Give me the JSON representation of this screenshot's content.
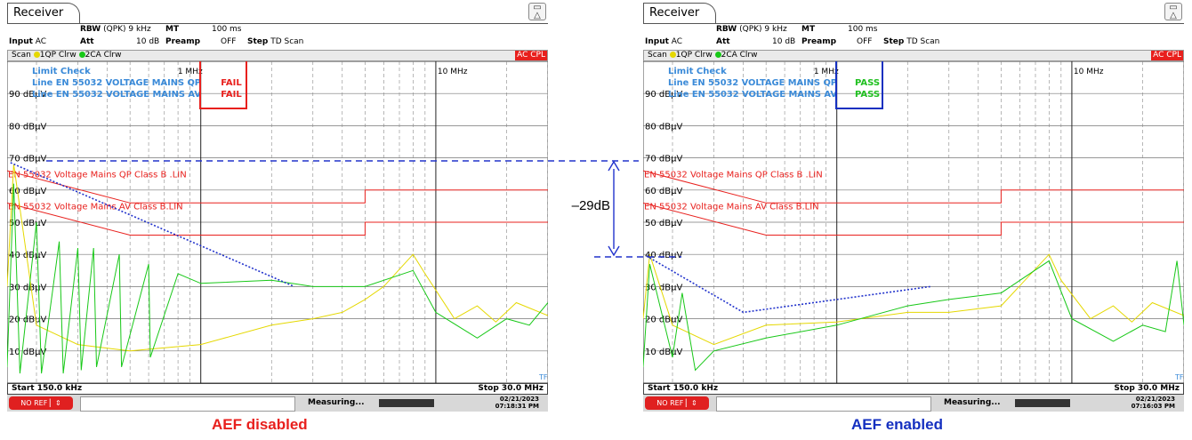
{
  "colors": {
    "qp_trace": "#e5d800",
    "av_trace": "#18c818",
    "limit_line": "#e8201d",
    "label_blue": "#3a8ad8",
    "fail": "#e8201d",
    "pass": "#20c020",
    "envelope": "#2233cc"
  },
  "panels": [
    {
      "tab": "Receiver",
      "rbw_label": "RBW",
      "rbw_value": "(QPK) 9 kHz",
      "mt_label": "MT",
      "mt_value": "100 ms",
      "input_label": "Input",
      "input_value": "AC",
      "att_label": "Att",
      "att_value": "10 dB",
      "preamp_label": "Preamp",
      "preamp_value": "OFF",
      "step_label": "Step",
      "step_value": "TD Scan",
      "scan_label": "Scan",
      "trace1_label": "1QP Clrw",
      "trace2_label": "2CA Clrw",
      "acq_badge": "AC CPL",
      "limit_check": {
        "title": "Limit Check",
        "qp_line": "Line EN 55032 VOLTAGE MAINS QP",
        "av_line": "Line EN 55032 VOLTAGE MAINS AV",
        "qp_result": "FAIL",
        "av_result": "FAIL",
        "result_color": "#e8201d",
        "box_color": "#e8201d"
      },
      "start": "Start 150.0 kHz",
      "stop": "Stop 30.0 MHz",
      "no_ref": "NO REF",
      "measuring": "Measuring...",
      "date": "02/21/2023",
      "time": "07:18:31 PM",
      "caption": "AEF disabled",
      "envelope": [
        [
          0.155,
          68.5
        ],
        [
          2.5,
          30
        ]
      ]
    },
    {
      "tab": "Receiver",
      "rbw_label": "RBW",
      "rbw_value": "(QPK) 9 kHz",
      "mt_label": "MT",
      "mt_value": "100 ms",
      "input_label": "Input",
      "input_value": "AC",
      "att_label": "Att",
      "att_value": "10 dB",
      "preamp_label": "Preamp",
      "preamp_value": "OFF",
      "step_label": "Step",
      "step_value": "TD Scan",
      "scan_label": "Scan",
      "trace1_label": "1QP Clrw",
      "trace2_label": "2CA Clrw",
      "acq_badge": "AC CPL",
      "limit_check": {
        "title": "Limit Check",
        "qp_line": "Line EN 55032 VOLTAGE MAINS QP",
        "av_line": "Line EN 55032 VOLTAGE MAINS AV",
        "qp_result": "PASS",
        "av_result": "PASS",
        "result_color": "#20c020",
        "box_color": "#1530c0"
      },
      "start": "Start 150.0 kHz",
      "stop": "Stop 30.0 MHz",
      "no_ref": "NO REF",
      "measuring": "Measuring...",
      "date": "02/21/2023",
      "time": "07:16:03 PM",
      "caption": "AEF enabled",
      "envelope": [
        [
          0.155,
          39.5
        ],
        [
          0.4,
          22
        ],
        [
          2.5,
          30
        ]
      ]
    }
  ],
  "delta_label": "–29dB",
  "chart_data": [
    {
      "type": "line",
      "title": "",
      "xlabel": "",
      "ylabel": "",
      "x_scale": "log",
      "xlim_mhz": [
        0.15,
        30
      ],
      "ylim_dbuv": [
        0,
        100
      ],
      "y_ticks": [
        "90 dBµV",
        "80 dBµV",
        "70 dBµV",
        "60 dBµV",
        "50 dBµV",
        "40 dBµV",
        "30 dBµV",
        "20 dBµV",
        "10 dBµV"
      ],
      "x_tick_labels": [
        {
          "x": 1,
          "label": "1 MHz"
        },
        {
          "x": 10,
          "label": "10 MHz"
        }
      ],
      "limit_lines": [
        {
          "name": "EN 55032 Voltage Mains QP Class B .LIN",
          "points": [
            [
              0.15,
              66
            ],
            [
              0.5,
              56
            ],
            [
              5,
              56
            ],
            [
              5,
              60
            ],
            [
              30,
              60
            ]
          ]
        },
        {
          "name": "EN 55032 Voltage Mains AV Class B.LIN",
          "points": [
            [
              0.15,
              56
            ],
            [
              0.5,
              46
            ],
            [
              5,
              46
            ],
            [
              5,
              50
            ],
            [
              30,
              50
            ]
          ]
        }
      ],
      "series": [
        {
          "name": "1QP Clrw",
          "points": [
            [
              0.15,
              30
            ],
            [
              0.16,
              68
            ],
            [
              0.2,
              18
            ],
            [
              0.3,
              12
            ],
            [
              0.5,
              10
            ],
            [
              1,
              12
            ],
            [
              2,
              18
            ],
            [
              3,
              20
            ],
            [
              4,
              22
            ],
            [
              5,
              26
            ],
            [
              6,
              30
            ],
            [
              8,
              40
            ],
            [
              9,
              34
            ],
            [
              12,
              20
            ],
            [
              15,
              24
            ],
            [
              18,
              19
            ],
            [
              22,
              25
            ],
            [
              30,
              21
            ]
          ]
        },
        {
          "name": "2CA Clrw",
          "points": [
            [
              0.15,
              5
            ],
            [
              0.16,
              62
            ],
            [
              0.17,
              3
            ],
            [
              0.2,
              50
            ],
            [
              0.21,
              3
            ],
            [
              0.25,
              44
            ],
            [
              0.26,
              3
            ],
            [
              0.3,
              42
            ],
            [
              0.31,
              4
            ],
            [
              0.35,
              42
            ],
            [
              0.36,
              5
            ],
            [
              0.45,
              40
            ],
            [
              0.46,
              5
            ],
            [
              0.6,
              37
            ],
            [
              0.61,
              8
            ],
            [
              0.8,
              34
            ],
            [
              1,
              31
            ],
            [
              2,
              32
            ],
            [
              3,
              30
            ],
            [
              5,
              30
            ],
            [
              8,
              35
            ],
            [
              10,
              22
            ],
            [
              15,
              14
            ],
            [
              20,
              20
            ],
            [
              25,
              18
            ],
            [
              30,
              25
            ]
          ]
        }
      ]
    },
    {
      "type": "line",
      "title": "",
      "xlabel": "",
      "ylabel": "",
      "x_scale": "log",
      "xlim_mhz": [
        0.15,
        30
      ],
      "ylim_dbuv": [
        0,
        100
      ],
      "y_ticks": [
        "90 dBµV",
        "80 dBµV",
        "70 dBµV",
        "60 dBµV",
        "50 dBµV",
        "40 dBµV",
        "30 dBµV",
        "20 dBµV",
        "10 dBµV"
      ],
      "x_tick_labels": [
        {
          "x": 1,
          "label": "1 MHz"
        },
        {
          "x": 10,
          "label": "10 MHz"
        }
      ],
      "limit_lines": [
        {
          "name": "EN 55032 Voltage Mains QP Class B .LIN",
          "points": [
            [
              0.15,
              66
            ],
            [
              0.5,
              56
            ],
            [
              5,
              56
            ],
            [
              5,
              60
            ],
            [
              30,
              60
            ]
          ]
        },
        {
          "name": "EN 55032 Voltage Mains AV Class B.LIN",
          "points": [
            [
              0.15,
              56
            ],
            [
              0.5,
              46
            ],
            [
              5,
              46
            ],
            [
              5,
              50
            ],
            [
              30,
              50
            ]
          ]
        }
      ],
      "series": [
        {
          "name": "1QP Clrw",
          "points": [
            [
              0.15,
              20
            ],
            [
              0.16,
              40
            ],
            [
              0.2,
              18
            ],
            [
              0.3,
              12
            ],
            [
              0.5,
              18
            ],
            [
              1,
              19
            ],
            [
              2,
              22
            ],
            [
              3,
              22
            ],
            [
              5,
              24
            ],
            [
              8,
              40
            ],
            [
              9,
              32
            ],
            [
              12,
              20
            ],
            [
              15,
              24
            ],
            [
              18,
              19
            ],
            [
              22,
              25
            ],
            [
              30,
              21
            ]
          ]
        },
        {
          "name": "2CA Clrw",
          "points": [
            [
              0.15,
              5
            ],
            [
              0.16,
              37
            ],
            [
              0.2,
              8
            ],
            [
              0.22,
              28
            ],
            [
              0.25,
              4
            ],
            [
              0.3,
              10
            ],
            [
              0.5,
              14
            ],
            [
              1,
              18
            ],
            [
              2,
              24
            ],
            [
              3,
              26
            ],
            [
              5,
              28
            ],
            [
              8,
              38
            ],
            [
              10,
              20
            ],
            [
              15,
              13
            ],
            [
              20,
              18
            ],
            [
              25,
              16
            ],
            [
              28,
              38
            ],
            [
              30,
              18
            ]
          ]
        }
      ]
    }
  ]
}
